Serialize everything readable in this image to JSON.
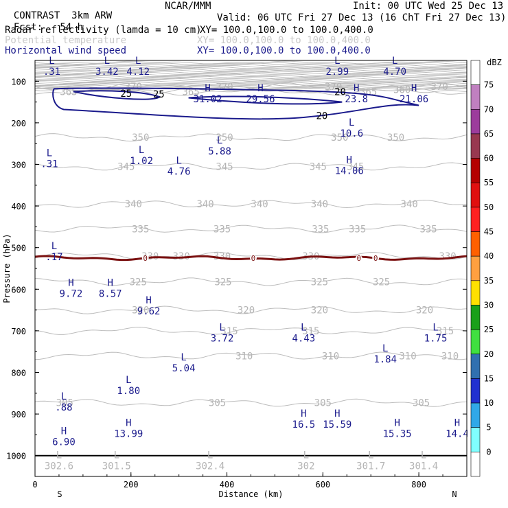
{
  "header": {
    "project": "CONTRAST",
    "model": "3km ARW",
    "org": "NCAR/MMM",
    "init": "Init: 00 UTC Wed 25 Dec 13",
    "fcst_label": "Fcst:",
    "fcst_value": "54 h",
    "valid": "Valid: 06 UTC Fri 27 Dec 13 (16 ChT Fri 27 Dec 13)",
    "fields": [
      {
        "name": "Radar reflectivity (lamda = 10 cm)",
        "xy": "XY= 100.0,100.0 to 100.0,400.0",
        "color": "#000000"
      },
      {
        "name": "Potential temperature",
        "xy": "XY= 100.0,100.0 to 100.0,400.0",
        "color": "#c8c8c8"
      },
      {
        "name": "Horizontal wind speed",
        "xy": "XY= 100.0,100.0 to 100.0,400.0",
        "color": "#1a1a8c"
      }
    ]
  },
  "chart_data": {
    "type": "contour",
    "xlabel": "Distance (km)",
    "ylabel": "Pressure (hPa)",
    "xlim": [
      0,
      900
    ],
    "ylim": [
      1050,
      50
    ],
    "x_ticks": [
      "0",
      "200",
      "400",
      "600",
      "800"
    ],
    "y_ticks": [
      "100",
      "200",
      "300",
      "400",
      "500",
      "600",
      "700",
      "800",
      "900",
      "1000"
    ],
    "x_left_label": "S",
    "x_right_label": "N",
    "colorbar": {
      "unit": "dBZ",
      "levels": [
        "75",
        "70",
        "65",
        "60",
        "55",
        "50",
        "45",
        "40",
        "35",
        "30",
        "25",
        "20",
        "15",
        "10",
        "5",
        "0"
      ],
      "colors": [
        "#ffffff",
        "#c080c0",
        "#9c3c9c",
        "#983850",
        "#b40000",
        "#e01010",
        "#ff2020",
        "#ff6000",
        "#ffa040",
        "#ffe000",
        "#1aa01a",
        "#40e040",
        "#3070b0",
        "#2030d0",
        "#30a8e8",
        "#80ffff",
        "#ffffff"
      ]
    },
    "theta_contours": [
      {
        "level": "370",
        "p": 113,
        "labels": [
          {
            "x": 205,
            "text": "370"
          },
          {
            "x": 395,
            "text": "370"
          },
          {
            "x": 622,
            "text": "370"
          },
          {
            "x": 843,
            "text": "370"
          }
        ]
      },
      {
        "level": "365",
        "p": 125,
        "labels": [
          {
            "x": 70,
            "text": "365"
          },
          {
            "x": 325,
            "text": "365"
          },
          {
            "x": 695,
            "text": "365"
          }
        ]
      },
      {
        "level": "360",
        "p": 120,
        "labels": [
          {
            "x": 765,
            "text": "360"
          }
        ]
      },
      {
        "level": "350",
        "p": 235,
        "labels": [
          {
            "x": 220,
            "text": "350"
          },
          {
            "x": 395,
            "text": "350"
          },
          {
            "x": 635,
            "text": "350"
          },
          {
            "x": 752,
            "text": "350"
          }
        ]
      },
      {
        "level": "345",
        "p": 305,
        "labels": [
          {
            "x": 190,
            "text": "345"
          },
          {
            "x": 395,
            "text": "345"
          },
          {
            "x": 590,
            "text": "345"
          },
          {
            "x": 668,
            "text": "345"
          }
        ]
      },
      {
        "level": "340",
        "p": 395,
        "labels": [
          {
            "x": 205,
            "text": "340"
          },
          {
            "x": 355,
            "text": "340"
          },
          {
            "x": 468,
            "text": "340"
          },
          {
            "x": 593,
            "text": "340"
          },
          {
            "x": 780,
            "text": "340"
          }
        ]
      },
      {
        "level": "335",
        "p": 455,
        "labels": [
          {
            "x": 220,
            "text": "335"
          },
          {
            "x": 390,
            "text": "335"
          },
          {
            "x": 595,
            "text": "335"
          },
          {
            "x": 672,
            "text": "335"
          },
          {
            "x": 820,
            "text": "335"
          }
        ]
      },
      {
        "level": "330",
        "p": 520,
        "labels": [
          {
            "x": 240,
            "text": "330"
          },
          {
            "x": 305,
            "text": "330"
          },
          {
            "x": 390,
            "text": "330"
          },
          {
            "x": 575,
            "text": "330"
          },
          {
            "x": 860,
            "text": "330"
          }
        ]
      },
      {
        "level": "325",
        "p": 582,
        "labels": [
          {
            "x": 215,
            "text": "325"
          },
          {
            "x": 392,
            "text": "325"
          },
          {
            "x": 593,
            "text": "325"
          },
          {
            "x": 722,
            "text": "325"
          }
        ]
      },
      {
        "level": "320",
        "p": 650,
        "labels": [
          {
            "x": 220,
            "text": "320"
          },
          {
            "x": 440,
            "text": "320"
          },
          {
            "x": 593,
            "text": "320"
          },
          {
            "x": 812,
            "text": "320"
          }
        ]
      },
      {
        "level": "315",
        "p": 700,
        "labels": [
          {
            "x": 405,
            "text": "315"
          },
          {
            "x": 575,
            "text": "315"
          },
          {
            "x": 855,
            "text": "315"
          }
        ]
      },
      {
        "level": "310",
        "p": 760,
        "labels": [
          {
            "x": 436,
            "text": "310"
          },
          {
            "x": 616,
            "text": "310"
          },
          {
            "x": 777,
            "text": "310"
          },
          {
            "x": 865,
            "text": "310"
          }
        ]
      },
      {
        "level": "305",
        "p": 873,
        "labels": [
          {
            "x": 62,
            "text": "305"
          },
          {
            "x": 380,
            "text": "305"
          },
          {
            "x": 600,
            "text": "305"
          },
          {
            "x": 805,
            "text": "305"
          }
        ]
      }
    ],
    "wind_contours": [
      {
        "level": "25",
        "labels": [
          {
            "x": 190,
            "p": 129,
            "text": "25"
          },
          {
            "x": 258,
            "p": 131,
            "text": "25"
          }
        ]
      },
      {
        "level": "20",
        "labels": [
          {
            "x": 636,
            "p": 125,
            "text": "20"
          },
          {
            "x": 598,
            "p": 183,
            "text": "20"
          }
        ]
      }
    ],
    "zero_isotherm": {
      "level": "0",
      "p": 525,
      "labels": [
        {
          "x": 230
        },
        {
          "x": 455
        },
        {
          "x": 675
        },
        {
          "x": 710
        }
      ]
    },
    "extrema": [
      {
        "type": "L",
        "x": 35,
        "p": 65,
        "value": ".31"
      },
      {
        "type": "L",
        "x": 150,
        "p": 65,
        "value": "3.42"
      },
      {
        "type": "L",
        "x": 215,
        "p": 65,
        "value": "4.12"
      },
      {
        "type": "L",
        "x": 630,
        "p": 65,
        "value": "2.99"
      },
      {
        "type": "L",
        "x": 750,
        "p": 65,
        "value": "4.70"
      },
      {
        "type": "H",
        "x": 360,
        "p": 131,
        "value": "31.02"
      },
      {
        "type": "H",
        "x": 470,
        "p": 131,
        "value": "29.56"
      },
      {
        "type": "H",
        "x": 670,
        "p": 131,
        "value": "23.8"
      },
      {
        "type": "H",
        "x": 790,
        "p": 131,
        "value": "21.06"
      },
      {
        "type": "L",
        "x": 660,
        "p": 213,
        "value": "10.6"
      },
      {
        "type": "L",
        "x": 385,
        "p": 256,
        "value": "5.88"
      },
      {
        "type": "L",
        "x": 222,
        "p": 279,
        "value": "1.02"
      },
      {
        "type": "L",
        "x": 30,
        "p": 287,
        "value": ".31"
      },
      {
        "type": "L",
        "x": 300,
        "p": 305,
        "value": "4.76"
      },
      {
        "type": "H",
        "x": 655,
        "p": 303,
        "value": "14.06"
      },
      {
        "type": "L",
        "x": 40,
        "p": 510,
        "value": ".17"
      },
      {
        "type": "H",
        "x": 75,
        "p": 599,
        "value": "9.72"
      },
      {
        "type": "H",
        "x": 157,
        "p": 599,
        "value": "8.57"
      },
      {
        "type": "H",
        "x": 237,
        "p": 641,
        "value": "9.62"
      },
      {
        "type": "L",
        "x": 390,
        "p": 706,
        "value": "3.72"
      },
      {
        "type": "L",
        "x": 560,
        "p": 706,
        "value": "4.43"
      },
      {
        "type": "L",
        "x": 835,
        "p": 706,
        "value": "1.75"
      },
      {
        "type": "L",
        "x": 730,
        "p": 756,
        "value": "1.84"
      },
      {
        "type": "L",
        "x": 310,
        "p": 778,
        "value": "5.04"
      },
      {
        "type": "L",
        "x": 195,
        "p": 832,
        "value": "1.80"
      },
      {
        "type": "L",
        "x": 60,
        "p": 872,
        "value": ".88"
      },
      {
        "type": "H",
        "x": 560,
        "p": 913,
        "value": "16.5"
      },
      {
        "type": "H",
        "x": 630,
        "p": 913,
        "value": "15.59"
      },
      {
        "type": "H",
        "x": 195,
        "p": 935,
        "value": "13.99"
      },
      {
        "type": "H",
        "x": 755,
        "p": 935,
        "value": "15.35"
      },
      {
        "type": "H",
        "x": 880,
        "p": 935,
        "value": "14.4"
      },
      {
        "type": "H",
        "x": 60,
        "p": 955,
        "value": "6.90"
      },
      {
        "type": "L",
        "x": 50,
        "p": 1013,
        "value": "302.6",
        "theta": true
      },
      {
        "type": "L",
        "x": 170,
        "p": 1013,
        "value": "301.5",
        "theta": true
      },
      {
        "type": "L",
        "x": 365,
        "p": 1013,
        "value": "302.4",
        "theta": true
      },
      {
        "type": "L",
        "x": 565,
        "p": 1013,
        "value": "302",
        "theta": true
      },
      {
        "type": "L",
        "x": 700,
        "p": 1013,
        "value": "301.7",
        "theta": true
      },
      {
        "type": "L",
        "x": 810,
        "p": 1013,
        "value": "301.4",
        "theta": true
      }
    ],
    "wind_color": "#1a1a8c",
    "theta_color": "#bcbcbc",
    "isotherm_color": "#7a1010"
  }
}
